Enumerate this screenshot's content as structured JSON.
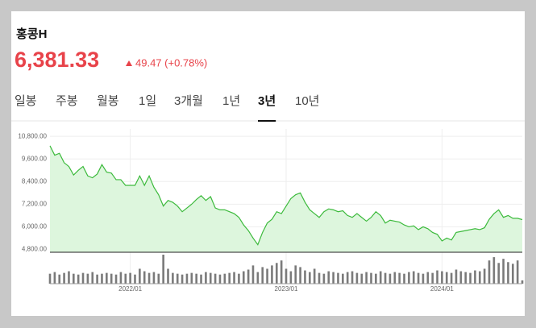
{
  "header": {
    "title": "홍콩H",
    "price": "6,381.33",
    "change": "49.47 (+0.78%)"
  },
  "tabs": [
    "일봉",
    "주봉",
    "월봉",
    "1일",
    "3개월",
    "1년",
    "3년",
    "10년"
  ],
  "selected_tab": 6,
  "chart_data": {
    "type": "line",
    "categories": [
      null,
      null,
      null,
      null,
      null,
      null,
      null,
      null,
      null,
      null,
      null,
      null,
      null,
      null,
      null,
      null,
      null,
      "2022/01",
      null,
      null,
      null,
      null,
      null,
      null,
      null,
      null,
      null,
      null,
      null,
      null,
      null,
      null,
      null,
      null,
      null,
      null,
      null,
      null,
      null,
      null,
      null,
      null,
      null,
      null,
      null,
      null,
      null,
      null,
      null,
      null,
      "2023/01",
      null,
      null,
      null,
      null,
      null,
      null,
      null,
      null,
      null,
      null,
      null,
      null,
      null,
      null,
      null,
      null,
      null,
      null,
      null,
      null,
      null,
      null,
      null,
      null,
      null,
      null,
      null,
      null,
      null,
      null,
      null,
      null,
      "2024/01",
      null,
      null,
      null,
      null,
      null,
      null,
      null,
      null,
      null,
      null,
      null,
      null,
      null,
      null,
      null,
      null,
      null
    ],
    "values": [
      10300,
      9800,
      9900,
      9400,
      9200,
      8750,
      9000,
      9200,
      8700,
      8600,
      8800,
      9300,
      8900,
      8850,
      8500,
      8500,
      8200,
      8200,
      8200,
      8700,
      8200,
      8700,
      8100,
      7700,
      7100,
      7400,
      7300,
      7100,
      6800,
      7000,
      7200,
      7450,
      7650,
      7400,
      7600,
      7000,
      6900,
      6900,
      6800,
      6700,
      6500,
      6100,
      5800,
      5400,
      5050,
      5700,
      6200,
      6400,
      6800,
      6700,
      7100,
      7500,
      7700,
      7800,
      7300,
      6900,
      6700,
      6500,
      6800,
      6950,
      6900,
      6800,
      6850,
      6600,
      6500,
      6700,
      6500,
      6300,
      6500,
      6800,
      6600,
      6200,
      6350,
      6300,
      6250,
      6100,
      6000,
      6050,
      5850,
      6000,
      5900,
      5700,
      5600,
      5250,
      5400,
      5300,
      5700,
      5750,
      5800,
      5850,
      5900,
      5850,
      5950,
      6400,
      6700,
      6900,
      6500,
      6600,
      6450,
      6450,
      6381.33
    ],
    "volume": [
      12,
      14,
      11,
      13,
      15,
      12,
      11,
      13,
      12,
      14,
      11,
      12,
      13,
      12,
      11,
      14,
      12,
      13,
      11,
      18,
      15,
      13,
      14,
      12,
      35,
      18,
      13,
      12,
      11,
      12,
      13,
      12,
      11,
      14,
      13,
      12,
      11,
      12,
      13,
      14,
      12,
      15,
      17,
      22,
      14,
      20,
      18,
      22,
      25,
      28,
      18,
      15,
      22,
      20,
      16,
      14,
      18,
      13,
      12,
      15,
      14,
      13,
      12,
      14,
      15,
      13,
      12,
      14,
      13,
      12,
      15,
      13,
      12,
      14,
      13,
      12,
      14,
      15,
      13,
      12,
      14,
      13,
      16,
      15,
      14,
      13,
      17,
      15,
      14,
      13,
      16,
      15,
      18,
      28,
      32,
      25,
      30,
      26,
      24,
      28,
      4
    ],
    "color": "#3cba3c",
    "fill": "#ddf6dd",
    "volume_color": "#7a7a7a",
    "ylim": [
      4650,
      10850
    ],
    "yticks": [
      {
        "value": 4800,
        "label": "4,800.00"
      },
      {
        "value": 6000,
        "label": "6,000.00"
      },
      {
        "value": 7200,
        "label": "7,200.00"
      },
      {
        "value": 8400,
        "label": "8,400.00"
      },
      {
        "value": 9600,
        "label": "9,600.00"
      },
      {
        "value": 10800,
        "label": "10,800.00"
      }
    ],
    "grid": true
  }
}
